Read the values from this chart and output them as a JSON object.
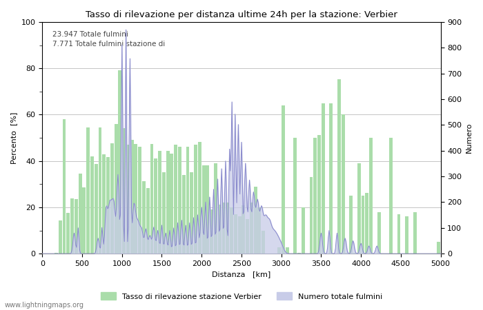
{
  "title": "Tasso di rilevazione per distanza ultime 24h per la stazione: Verbier",
  "xlabel": "Distanza   [km]",
  "ylabel_left": "Percento  [%]",
  "ylabel_right": "Numero",
  "annotation_line1": "23.947 Totale fulmini",
  "annotation_line2": "7.771 Totale fulmini stazione di",
  "legend_bar": "Tasso di rilevazione stazione Verbier",
  "legend_area": "Numero totale fulmini",
  "watermark": "www.lightningmaps.org",
  "xlim": [
    0,
    5000
  ],
  "ylim_left": [
    0,
    100
  ],
  "ylim_right": [
    0,
    900
  ],
  "bar_color": "#aaddaa",
  "area_color": "#c8cce8",
  "line_color": "#8888cc",
  "background_color": "#ffffff",
  "grid_color": "#bbbbbb",
  "x_ticks": [
    0,
    500,
    1000,
    1500,
    2000,
    2500,
    3000,
    3500,
    4000,
    4500,
    5000
  ],
  "y_ticks_left": [
    0,
    20,
    40,
    60,
    80,
    100
  ],
  "y_ticks_right": [
    0,
    100,
    200,
    300,
    400,
    500,
    600,
    700,
    800,
    900
  ]
}
